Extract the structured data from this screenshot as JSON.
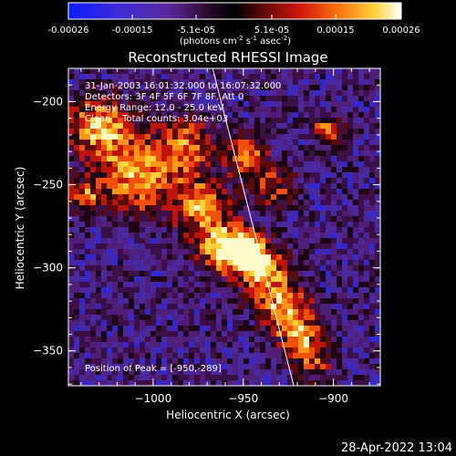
{
  "title": "Reconstructed RHESSI Image",
  "colorbar": {
    "ticks": [
      "-0.00026",
      "-0.00015",
      "-5.1e-05",
      "5.1e-05",
      "0.00015",
      "0.00026"
    ],
    "unit_main": "(photons cm",
    "unit_sup1": "-2",
    "unit_s": " s",
    "unit_sup2": "-1",
    "unit_asec": " asec",
    "unit_sup3": "-2",
    "unit_close": ")"
  },
  "annotations": {
    "time": "31-Jan-2003 16:01:32.000 to 16:07:32.000",
    "detectors": "Detectors: 3F 4F 5F 6F 7F 8F, Att 0",
    "energy": "Energy Range: 12.0 - 25.0 keV",
    "clean": "Clean    Total counts: 3.04e+03",
    "peak": "Position of Peak = [-950,-289]"
  },
  "timestamp": "28-Apr-2022 13:04",
  "colors": {
    "background": "#000000",
    "text": "#ffffff",
    "limb": "#ffffff"
  },
  "chart_data": {
    "type": "heatmap",
    "title": "Reconstructed RHESSI Image",
    "xlabel": "Heliocentric X (arcsec)",
    "ylabel": "Heliocentric Y (arcsec)",
    "xlim": [
      -1047,
      -874
    ],
    "ylim": [
      -371,
      -180
    ],
    "xticks": [
      -1000,
      -950,
      -900
    ],
    "yticks": [
      -200,
      -250,
      -300,
      -350
    ],
    "colorbar_range": [
      -0.00026,
      0.00026
    ],
    "peak": [
      -950,
      -289
    ],
    "limb_line": [
      [
        -967,
        -180
      ],
      [
        -922,
        -371
      ]
    ]
  }
}
